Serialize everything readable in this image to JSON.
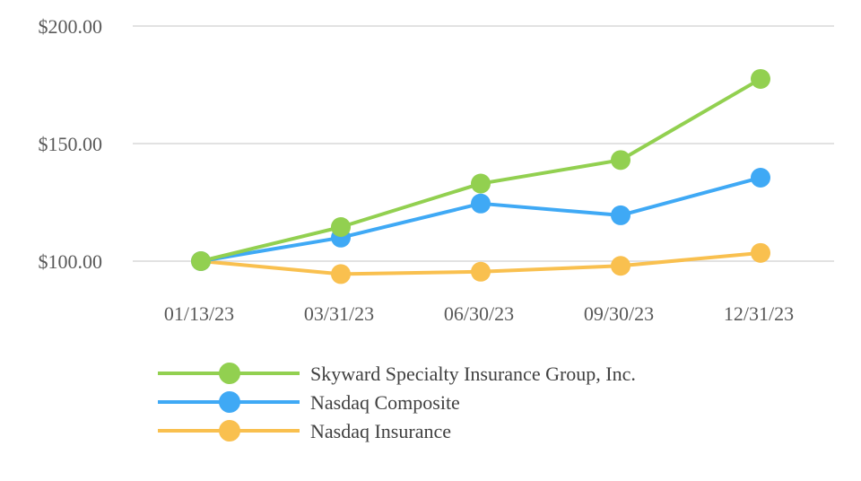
{
  "chart_data": {
    "type": "line",
    "categories": [
      "01/13/23",
      "03/31/23",
      "06/30/23",
      "09/30/23",
      "12/31/23"
    ],
    "y_ticks": [
      "$100.00",
      "$150.00",
      "$200.00"
    ],
    "ylim": [
      100,
      200
    ],
    "grid": true,
    "legend_position": "bottom",
    "series": [
      {
        "name": "Skyward Specialty Insurance Group, Inc.",
        "values": [
          100.0,
          114.5,
          133.0,
          143.0,
          177.5
        ],
        "color": "#92d050",
        "marker": "circle"
      },
      {
        "name": "Nasdaq Composite",
        "values": [
          100.0,
          110.0,
          124.5,
          119.5,
          135.5
        ],
        "color": "#3fa9f5",
        "marker": "circle"
      },
      {
        "name": "Nasdaq Insurance",
        "values": [
          100.0,
          94.5,
          95.5,
          98.0,
          103.5
        ],
        "color": "#f9c04f",
        "marker": "circle"
      }
    ]
  }
}
